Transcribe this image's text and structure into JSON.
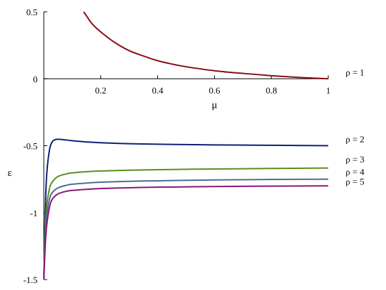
{
  "chart_data": {
    "type": "line",
    "xlabel": "μ",
    "ylabel": "ε",
    "xlim": [
      0,
      1
    ],
    "ylim": [
      -1.5,
      0.5
    ],
    "x_ticks": [
      "0.2",
      "0.4",
      "0.6",
      "0.8",
      "1"
    ],
    "y_ticks": [
      "0.5",
      "0",
      "-0.5",
      "-1",
      "-1.5"
    ],
    "grid": false,
    "legend": "inline labels at right end of each curve",
    "series": [
      {
        "name": "ρ = 1",
        "color": "#8b0a14",
        "x": [
          0.14,
          0.15,
          0.17,
          0.2,
          0.25,
          0.3,
          0.35,
          0.4,
          0.45,
          0.5,
          0.6,
          0.7,
          0.8,
          0.9,
          1.0
        ],
        "y": [
          0.5,
          0.47,
          0.41,
          0.35,
          0.27,
          0.21,
          0.17,
          0.135,
          0.11,
          0.09,
          0.06,
          0.04,
          0.023,
          0.01,
          0.0
        ]
      },
      {
        "name": "ρ = 2",
        "color": "#0a1e78",
        "x": [
          0.0,
          0.005,
          0.01,
          0.02,
          0.03,
          0.04,
          0.05,
          0.07,
          0.1,
          0.15,
          0.2,
          0.3,
          0.4,
          0.6,
          0.8,
          1.0
        ],
        "y": [
          -1.5,
          -1.0,
          -0.72,
          -0.53,
          -0.47,
          -0.455,
          -0.452,
          -0.455,
          -0.463,
          -0.472,
          -0.478,
          -0.485,
          -0.489,
          -0.494,
          -0.497,
          -0.5
        ]
      },
      {
        "name": "ρ = 3",
        "color": "#5a8c1e",
        "x": [
          0.0,
          0.005,
          0.01,
          0.02,
          0.03,
          0.05,
          0.08,
          0.1,
          0.15,
          0.2,
          0.3,
          0.4,
          0.6,
          0.8,
          1.0
        ],
        "y": [
          -1.5,
          -1.1,
          -0.95,
          -0.82,
          -0.77,
          -0.73,
          -0.71,
          -0.703,
          -0.694,
          -0.689,
          -0.683,
          -0.679,
          -0.674,
          -0.67,
          -0.667
        ]
      },
      {
        "name": "ρ = 4",
        "color": "#4a6a96",
        "x": [
          0.0,
          0.005,
          0.01,
          0.02,
          0.03,
          0.05,
          0.08,
          0.1,
          0.15,
          0.2,
          0.3,
          0.4,
          0.6,
          0.8,
          1.0
        ],
        "y": [
          -1.5,
          -1.2,
          -1.03,
          -0.9,
          -0.85,
          -0.815,
          -0.795,
          -0.788,
          -0.779,
          -0.773,
          -0.766,
          -0.762,
          -0.756,
          -0.752,
          -0.75
        ]
      },
      {
        "name": "ρ = 5",
        "color": "#8c1478",
        "x": [
          0.0,
          0.005,
          0.01,
          0.02,
          0.03,
          0.05,
          0.08,
          0.1,
          0.15,
          0.2,
          0.3,
          0.4,
          0.6,
          0.8,
          1.0
        ],
        "y": [
          -1.5,
          -1.25,
          -1.1,
          -0.96,
          -0.9,
          -0.86,
          -0.84,
          -0.834,
          -0.826,
          -0.82,
          -0.814,
          -0.81,
          -0.805,
          -0.802,
          -0.8
        ]
      }
    ]
  }
}
